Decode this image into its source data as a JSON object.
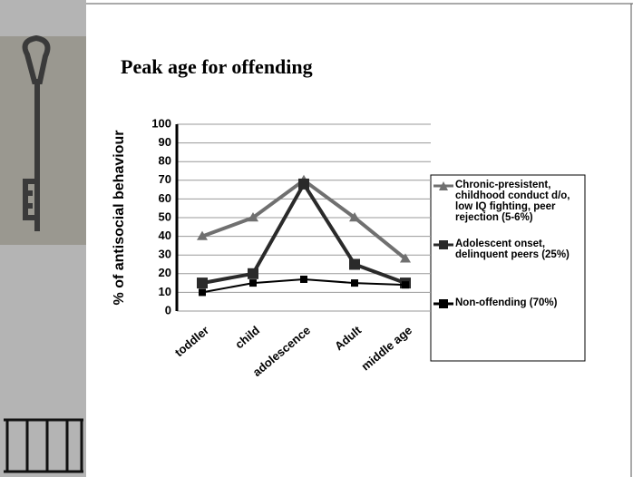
{
  "chart_data": {
    "type": "line",
    "title": "Peak age for offending",
    "y_label": "% of antisocial behaviour",
    "categories": [
      "toddler",
      "child",
      "adolescence",
      "Adult",
      "middle age"
    ],
    "series": [
      {
        "name": "Chronic-presistent, childhood conduct d/o, low IQ fighting, peer rejection (5-6%)",
        "color": "#707070",
        "marker": "triangle",
        "values": [
          40,
          50,
          70,
          50,
          28
        ]
      },
      {
        "name": "Adolescent onset, delinquent peers (25%)",
        "color": "#2a2a2a",
        "marker": "square",
        "values": [
          15,
          20,
          68,
          25,
          15
        ]
      },
      {
        "name": "Non-offending (70%)",
        "color": "#000000",
        "marker": "square",
        "values": [
          10,
          15,
          17,
          15,
          14
        ]
      }
    ],
    "ylim": [
      0,
      100
    ],
    "yticks": [
      0,
      10,
      20,
      30,
      40,
      50,
      60,
      70,
      80,
      90,
      100
    ],
    "grid": true,
    "legend": "right"
  }
}
